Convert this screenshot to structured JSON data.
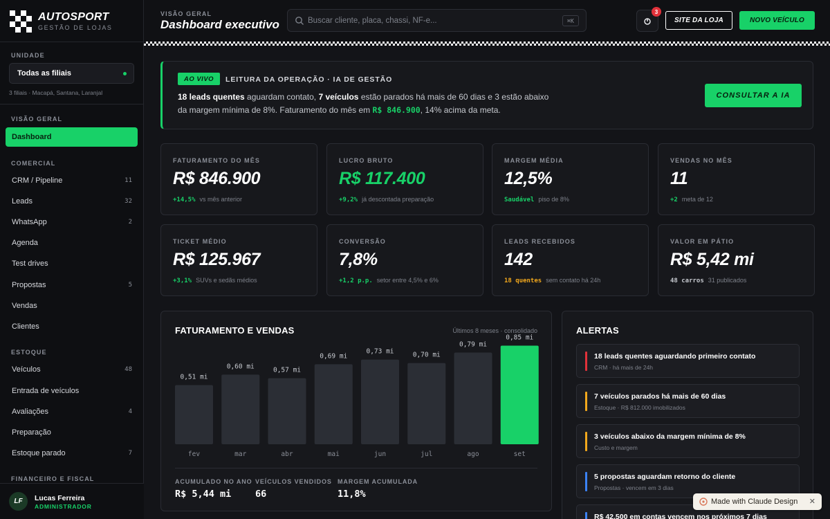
{
  "brand": {
    "name": "AUTOSPORT",
    "tagline": "GESTÃO DE LOJAS"
  },
  "sidebar": {
    "unit_label": "UNIDADE",
    "unit_value": "Todas as filiais",
    "unit_note": "3 filiais · Macapá, Santana, Laranjal",
    "sections": [
      {
        "title": "VISÃO GERAL",
        "items": [
          {
            "label": "Dashboard",
            "count": "",
            "active": true
          }
        ]
      },
      {
        "title": "COMERCIAL",
        "items": [
          {
            "label": "CRM / Pipeline",
            "count": "11"
          },
          {
            "label": "Leads",
            "count": "32"
          },
          {
            "label": "WhatsApp",
            "count": "2"
          },
          {
            "label": "Agenda",
            "count": ""
          },
          {
            "label": "Test drives",
            "count": ""
          },
          {
            "label": "Propostas",
            "count": "5"
          },
          {
            "label": "Vendas",
            "count": ""
          },
          {
            "label": "Clientes",
            "count": ""
          }
        ]
      },
      {
        "title": "ESTOQUE",
        "items": [
          {
            "label": "Veículos",
            "count": "48"
          },
          {
            "label": "Entrada de veículos",
            "count": ""
          },
          {
            "label": "Avaliações",
            "count": "4"
          },
          {
            "label": "Preparação",
            "count": ""
          },
          {
            "label": "Estoque parado",
            "count": "7"
          }
        ]
      },
      {
        "title": "FINANCEIRO E FISCAL",
        "items": []
      }
    ],
    "user": {
      "initials": "LF",
      "name": "Lucas Ferreira",
      "role": "ADMINISTRADOR"
    }
  },
  "header": {
    "crumb": "VISÃO GERAL",
    "title": "Dashboard executivo",
    "search_placeholder": "Buscar cliente, placa, chassi, NF-e...",
    "search_shortcut": "⌘K",
    "notif_count": "3",
    "site_button": "SITE DA LOJA",
    "new_button": "NOVO VEÍCULO"
  },
  "banner": {
    "badge": "AO VIVO",
    "title": "LEITURA DA OPERAÇÃO · IA DE GESTÃO",
    "p1_bold": "18 leads quentes",
    "p2": " aguardam contato, ",
    "p3_bold": "7 veículos",
    "p4": " estão parados há mais de 60 dias e 3 estão abaixo da margem mínima de 8%. Faturamento do mês em ",
    "p5_money": "R$ 846.900",
    "p6": ", 14% acima da meta.",
    "button": "CONSULTAR A IA"
  },
  "kpis": [
    {
      "label": "FATURAMENTO DO MÊS",
      "value": "R$ 846.900",
      "delta": "+14,5%",
      "delta_color": "g",
      "note": "vs mês anterior"
    },
    {
      "label": "LUCRO BRUTO",
      "value": "R$ 117.400",
      "green": true,
      "delta": "+9,2%",
      "delta_color": "g",
      "note": "já descontada preparação"
    },
    {
      "label": "MARGEM MÉDIA",
      "value": "12,5%",
      "delta": "Saudável",
      "delta_color": "g",
      "note": "piso de 8%"
    },
    {
      "label": "VENDAS NO MÊS",
      "value": "11",
      "delta": "+2",
      "delta_color": "g",
      "note": "meta de 12"
    },
    {
      "label": "TICKET MÉDIO",
      "value": "R$ 125.967",
      "delta": "+3,1%",
      "delta_color": "g",
      "note": "SUVs e sedãs médios"
    },
    {
      "label": "CONVERSÃO",
      "value": "7,8%",
      "delta": "+1,2 p.p.",
      "delta_color": "g",
      "note": "setor entre 4,5% e 6%"
    },
    {
      "label": "LEADS RECEBIDOS",
      "value": "142",
      "delta": "18 quentes",
      "delta_color": "o",
      "note": "sem contato há 24h"
    },
    {
      "label": "VALOR EM PÁTIO",
      "value": "R$ 5,42 mi",
      "delta": "48 carros",
      "delta_color": "w",
      "note": "31 publicados"
    }
  ],
  "revenue_panel": {
    "title": "FATURAMENTO E VENDAS",
    "note": "Últimos 8 meses · consolidado",
    "stats": [
      {
        "label": "ACUMULADO NO ANO",
        "value": "R$ 5,44 mi"
      },
      {
        "label": "VEÍCULOS VENDIDOS",
        "value": "66"
      },
      {
        "label": "MARGEM ACUMULADA",
        "value": "11,8%"
      }
    ]
  },
  "chart_data": {
    "type": "bar",
    "title": "FATURAMENTO E VENDAS",
    "categories": [
      "fev",
      "mar",
      "abr",
      "mai",
      "jun",
      "jul",
      "ago",
      "set"
    ],
    "values": [
      0.51,
      0.6,
      0.57,
      0.69,
      0.73,
      0.7,
      0.79,
      0.85
    ],
    "data_labels": [
      "0,51 mi",
      "0,60 mi",
      "0,57 mi",
      "0,69 mi",
      "0,73 mi",
      "0,70 mi",
      "0,79 mi",
      "0,85 mi"
    ],
    "unit": "mi",
    "highlight_index": 7,
    "colors": {
      "bar": "#2b2e35",
      "highlight": "#18d168"
    },
    "grid": false
  },
  "alerts_panel": {
    "title": "ALERTAS",
    "items": [
      {
        "title": "18 leads quentes aguardando primeiro contato",
        "sub": "CRM · há mais de 24h",
        "color": "#e1313a"
      },
      {
        "title": "7 veículos parados há mais de 60 dias",
        "sub": "Estoque · R$ 812.000 imobilizados",
        "color": "#f2a81c"
      },
      {
        "title": "3 veículos abaixo da margem mínima de 8%",
        "sub": "Custo e margem",
        "color": "#f2a81c"
      },
      {
        "title": "5 propostas aguardam retorno do cliente",
        "sub": "Propostas · vencem em 3 dias",
        "color": "#3b82f6"
      },
      {
        "title": "R$ 42.500 em contas vencem nos próximos 7 dias",
        "sub": "",
        "color": "#3b82f6"
      }
    ]
  },
  "toast": {
    "text": "Made with Claude Design"
  },
  "colors": {
    "accent": "#18d168",
    "warning": "#f2a81c",
    "danger": "#e1313a",
    "info": "#3b82f6"
  }
}
